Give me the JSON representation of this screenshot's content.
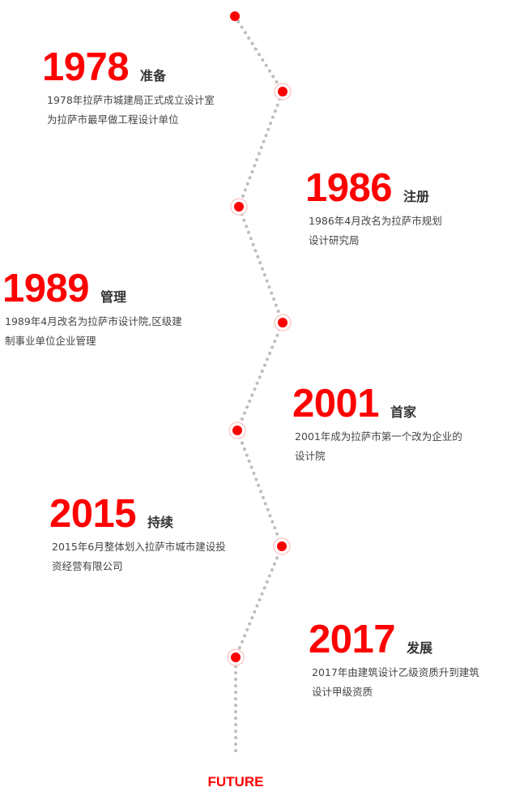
{
  "colors": {
    "accent": "#ff0000",
    "line": "#bdbdbd",
    "title": "#333333"
  },
  "milestones": [
    {
      "year": "1978",
      "title": "准备",
      "desc": [
        "1978年拉萨市城建局正式成立设计室",
        "为拉萨市最早做工程设计单位"
      ]
    },
    {
      "year": "1986",
      "title": "注册",
      "desc": [
        "1986年4月改名为拉萨市规划",
        "设计研究局"
      ]
    },
    {
      "year": "1989",
      "title": "管理",
      "desc": [
        "1989年4月改名为拉萨市设计院,区级建",
        "制事业单位企业管理"
      ]
    },
    {
      "year": "2001",
      "title": "首家",
      "desc": [
        "2001年成为拉萨市第一个改为企业的",
        "设计院"
      ]
    },
    {
      "year": "2015",
      "title": "持续",
      "desc": [
        "2015年6月整体划入拉萨市城市建设投",
        "资经营有限公司"
      ]
    },
    {
      "year": "2017",
      "title": "发展",
      "desc": [
        "2017年由建筑设计乙级资质升到建筑",
        "设计甲级资质"
      ]
    }
  ],
  "footer": {
    "label": "FUTURE"
  }
}
